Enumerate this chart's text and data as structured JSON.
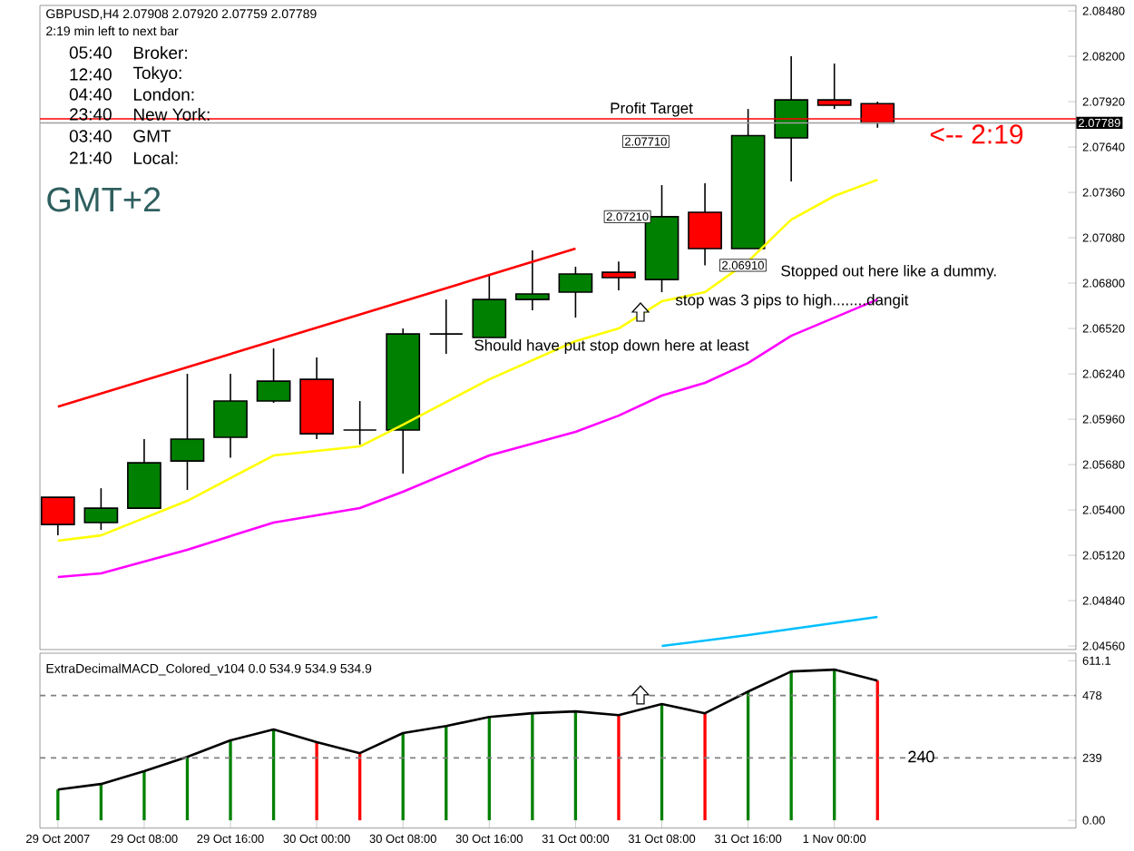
{
  "chart_data": [
    {
      "type": "candlestick",
      "title": "GBPUSD,H4 2.07908 2.07920 2.07759 2.07789",
      "subtitle": "2:19 min left to next bar",
      "x": [
        "2007-10-29T00:00",
        "2007-10-29T04:00",
        "2007-10-29T08:00",
        "2007-10-29T12:00",
        "2007-10-29T16:00",
        "2007-10-29T20:00",
        "2007-10-30T00:00",
        "2007-10-30T04:00",
        "2007-10-30T08:00",
        "2007-10-30T12:00",
        "2007-10-30T16:00",
        "2007-10-30T20:00",
        "2007-10-31T00:00",
        "2007-10-31T04:00",
        "2007-10-31T08:00",
        "2007-10-31T12:00",
        "2007-10-31T16:00",
        "2007-10-31T20:00",
        "2007-11-01T00:00",
        "2007-11-01T04:00"
      ],
      "ohlc": [
        [
          2.05478,
          2.05478,
          2.05243,
          2.0531
        ],
        [
          2.05322,
          2.05534,
          2.05277,
          2.05411
        ],
        [
          2.05411,
          2.05837,
          2.05411,
          2.05691
        ],
        [
          2.05702,
          2.0624,
          2.05523,
          2.05837
        ],
        [
          2.05848,
          2.0624,
          2.05722,
          2.06072
        ],
        [
          2.06072,
          2.06397,
          2.06061,
          2.06195
        ],
        [
          2.06206,
          2.06341,
          2.05837,
          2.0587
        ],
        [
          2.05893,
          2.06072,
          2.05803,
          2.05893
        ],
        [
          2.05893,
          2.0652,
          2.05624,
          2.06486
        ],
        [
          2.06486,
          2.06699,
          2.06363,
          2.06486
        ],
        [
          2.06464,
          2.06856,
          2.06464,
          2.06699
        ],
        [
          2.06699,
          2.07002,
          2.06632,
          2.06733
        ],
        [
          2.06744,
          2.06901,
          2.06587,
          2.06856
        ],
        [
          2.06867,
          2.06934,
          2.06755,
          2.06834
        ],
        [
          2.06822,
          2.07405,
          2.06744,
          2.0721
        ],
        [
          2.07237,
          2.07416,
          2.0691,
          2.07013
        ],
        [
          2.07013,
          2.07875,
          2.07013,
          2.0771
        ],
        [
          2.07696,
          2.082,
          2.07427,
          2.07931
        ],
        [
          2.07931,
          2.08155,
          2.07875,
          2.07898
        ],
        [
          2.07908,
          2.0792,
          2.07759,
          2.07789
        ]
      ],
      "colors": [
        "#ff0000",
        "#008000",
        "#008000",
        "#008000",
        "#008000",
        "#008000",
        "#ff0000",
        "#000000",
        "#008000",
        "#000000",
        "#008000",
        "#008000",
        "#008000",
        "#ff0000",
        "#008000",
        "#ff0000",
        "#008000",
        "#008000",
        "#ff0000",
        "#ff0000"
      ],
      "series": [
        {
          "type": "line",
          "color": "#ff0000",
          "x": [
            "2007-10-29T00:00",
            "2007-10-31T00:00"
          ],
          "values": [
            2.06037,
            2.07013
          ]
        },
        {
          "type": "line",
          "color": "#ffff00",
          "x": [
            "2007-10-29T00:00",
            "2007-10-29T04:00",
            "2007-10-29T12:00",
            "2007-10-29T20:00",
            "2007-10-30T04:00",
            "2007-10-30T08:00",
            "2007-10-30T16:00",
            "2007-10-31T00:00",
            "2007-10-31T04:00",
            "2007-10-31T08:00",
            "2007-10-31T12:00",
            "2007-10-31T16:00",
            "2007-10-31T20:00",
            "2007-11-01T00:00",
            "2007-11-01T04:00"
          ],
          "values": [
            2.0521,
            2.05243,
            2.05456,
            2.05736,
            2.05792,
            2.05926,
            2.06206,
            2.06442,
            2.0652,
            2.06688,
            2.06744,
            2.06934,
            2.07192,
            2.07338,
            2.07438
          ]
        },
        {
          "type": "line",
          "color": "#ff00ff",
          "x": [
            "2007-10-29T00:00",
            "2007-10-29T04:00",
            "2007-10-29T12:00",
            "2007-10-29T20:00",
            "2007-10-30T04:00",
            "2007-10-30T08:00",
            "2007-10-30T16:00",
            "2007-10-31T00:00",
            "2007-10-31T04:00",
            "2007-10-31T08:00",
            "2007-10-31T12:00",
            "2007-10-31T16:00",
            "2007-10-31T20:00",
            "2007-11-01T00:00",
            "2007-11-01T04:00"
          ],
          "values": [
            2.04986,
            2.05008,
            2.05154,
            2.05322,
            2.05411,
            2.05512,
            2.05736,
            2.05882,
            2.05982,
            2.06106,
            2.06184,
            2.06307,
            2.06475,
            2.06587,
            2.06699
          ]
        },
        {
          "type": "line",
          "color": "#00bfff",
          "x": [
            "2007-10-31T08:00",
            "2007-10-31T16:00",
            "2007-11-01T04:00"
          ],
          "values": [
            2.0456,
            2.04627,
            2.04739
          ]
        }
      ],
      "xlim": [
        "2007-10-28T22:20",
        "2007-11-01T22:24"
      ],
      "ylim": [
        2.04538,
        2.08514
      ],
      "yticks": [
        {
          "value": 2.0848,
          "label": "2.08480"
        },
        {
          "value": 2.082,
          "label": "2.08200"
        },
        {
          "value": 2.0792,
          "label": "2.07920"
        },
        {
          "value": 2.0764,
          "label": "2.07640"
        },
        {
          "value": 2.0736,
          "label": "2.07360"
        },
        {
          "value": 2.0708,
          "label": "2.07080"
        },
        {
          "value": 2.068,
          "label": "2.06800"
        },
        {
          "value": 2.0652,
          "label": "2.06520"
        },
        {
          "value": 2.0624,
          "label": "2.06240"
        },
        {
          "value": 2.0596,
          "label": "2.05960"
        },
        {
          "value": 2.0568,
          "label": "2.05680"
        },
        {
          "value": 2.054,
          "label": "2.05400"
        },
        {
          "value": 2.0512,
          "label": "2.05120"
        },
        {
          "value": 2.0484,
          "label": "2.04840"
        },
        {
          "value": 2.0456,
          "label": "2.04560"
        }
      ],
      "tick_labels": "y",
      "ref_lines": [
        {
          "axis": "y",
          "value": 2.07814,
          "label": "Profit Target",
          "color": "#ff0000"
        },
        {
          "axis": "y",
          "value": 2.07789,
          "label": "2.07789",
          "color": "#a0a0a0"
        }
      ],
      "annotations": [
        "05:40",
        "12:40",
        "04:40",
        "23:40",
        "03:40",
        "21:40",
        "Broker:",
        "Tokyo:",
        "London:",
        "New York:",
        "GMT",
        "Local:",
        "GMT+2",
        "Should have put stop down here at least",
        "Stopped out here like a dummy.",
        "stop was 3 pips to high........dangit",
        "<-- 2:19",
        "2.07710",
        {
          "text": "2.07210",
          "x": "2007-10-31T08:00",
          "y": 2.0721
        },
        {
          "text": "2.06910",
          "x": "2007-10-31T12:00",
          "y": 2.0691
        }
      ]
    },
    {
      "type": "bar",
      "title": "ExtraDecimalMACD_Colored_v104 0.0 534.9 534.9 534.9",
      "x": [
        "2007-10-29T00:00",
        "2007-10-29T04:00",
        "2007-10-29T08:00",
        "2007-10-29T12:00",
        "2007-10-29T16:00",
        "2007-10-29T20:00",
        "2007-10-30T00:00",
        "2007-10-30T04:00",
        "2007-10-30T08:00",
        "2007-10-30T12:00",
        "2007-10-30T16:00",
        "2007-10-30T20:00",
        "2007-10-31T00:00",
        "2007-10-31T04:00",
        "2007-10-31T08:00",
        "2007-10-31T12:00",
        "2007-10-31T16:00",
        "2007-10-31T20:00",
        "2007-11-01T00:00",
        "2007-11-01T04:00"
      ],
      "series": [
        {
          "type": "bar",
          "colors": [
            "#008000",
            "#008000",
            "#008000",
            "#008000",
            "#008000",
            "#008000",
            "#ff0000",
            "#ff0000",
            "#008000",
            "#008000",
            "#008000",
            "#008000",
            "#008000",
            "#ff0000",
            "#008000",
            "#ff0000",
            "#008000",
            "#008000",
            "#008000",
            "#ff0000"
          ],
          "values": [
            118,
            139,
            188,
            243,
            306,
            348,
            299,
            257,
            334,
            361,
            396,
            410,
            417,
            403,
            445,
            410,
            493,
            570,
            577,
            534.9
          ]
        },
        {
          "type": "line",
          "color": "#000000",
          "values": [
            118,
            139,
            188,
            243,
            306,
            348,
            299,
            257,
            334,
            361,
            396,
            410,
            417,
            403,
            445,
            410,
            493,
            570,
            577,
            534.9
          ]
        }
      ],
      "xlim": [
        "2007-10-28T22:20",
        "2007-11-01T22:24"
      ],
      "ylim": [
        -30,
        640
      ],
      "xticks": [
        {
          "value": "2007-10-29T00:00",
          "label": "29 Oct 2007"
        },
        {
          "value": "2007-10-29T08:00",
          "label": "29 Oct 08:00"
        },
        {
          "value": "2007-10-29T16:00",
          "label": "29 Oct 16:00"
        },
        {
          "value": "2007-10-30T00:00",
          "label": "30 Oct 00:00"
        },
        {
          "value": "2007-10-30T08:00",
          "label": "30 Oct 08:00"
        },
        {
          "value": "2007-10-30T16:00",
          "label": "30 Oct 16:00"
        },
        {
          "value": "2007-10-31T00:00",
          "label": "31 Oct 00:00"
        },
        {
          "value": "2007-10-31T08:00",
          "label": "31 Oct 08:00"
        },
        {
          "value": "2007-10-31T16:00",
          "label": "31 Oct 16:00"
        },
        {
          "value": "2007-11-01T00:00",
          "label": "1 Nov 00:00"
        }
      ],
      "yticks": [
        611.1,
        478,
        239,
        {
          "value": 0,
          "label": "0.00"
        }
      ],
      "ref_lines": [
        {
          "axis": "y",
          "value": 478,
          "color": "#808080",
          "line_style": "dashed"
        },
        {
          "axis": "y",
          "value": 239,
          "color": "#808080",
          "line_style": "dashed"
        }
      ],
      "annotations": [
        "240"
      ]
    }
  ]
}
